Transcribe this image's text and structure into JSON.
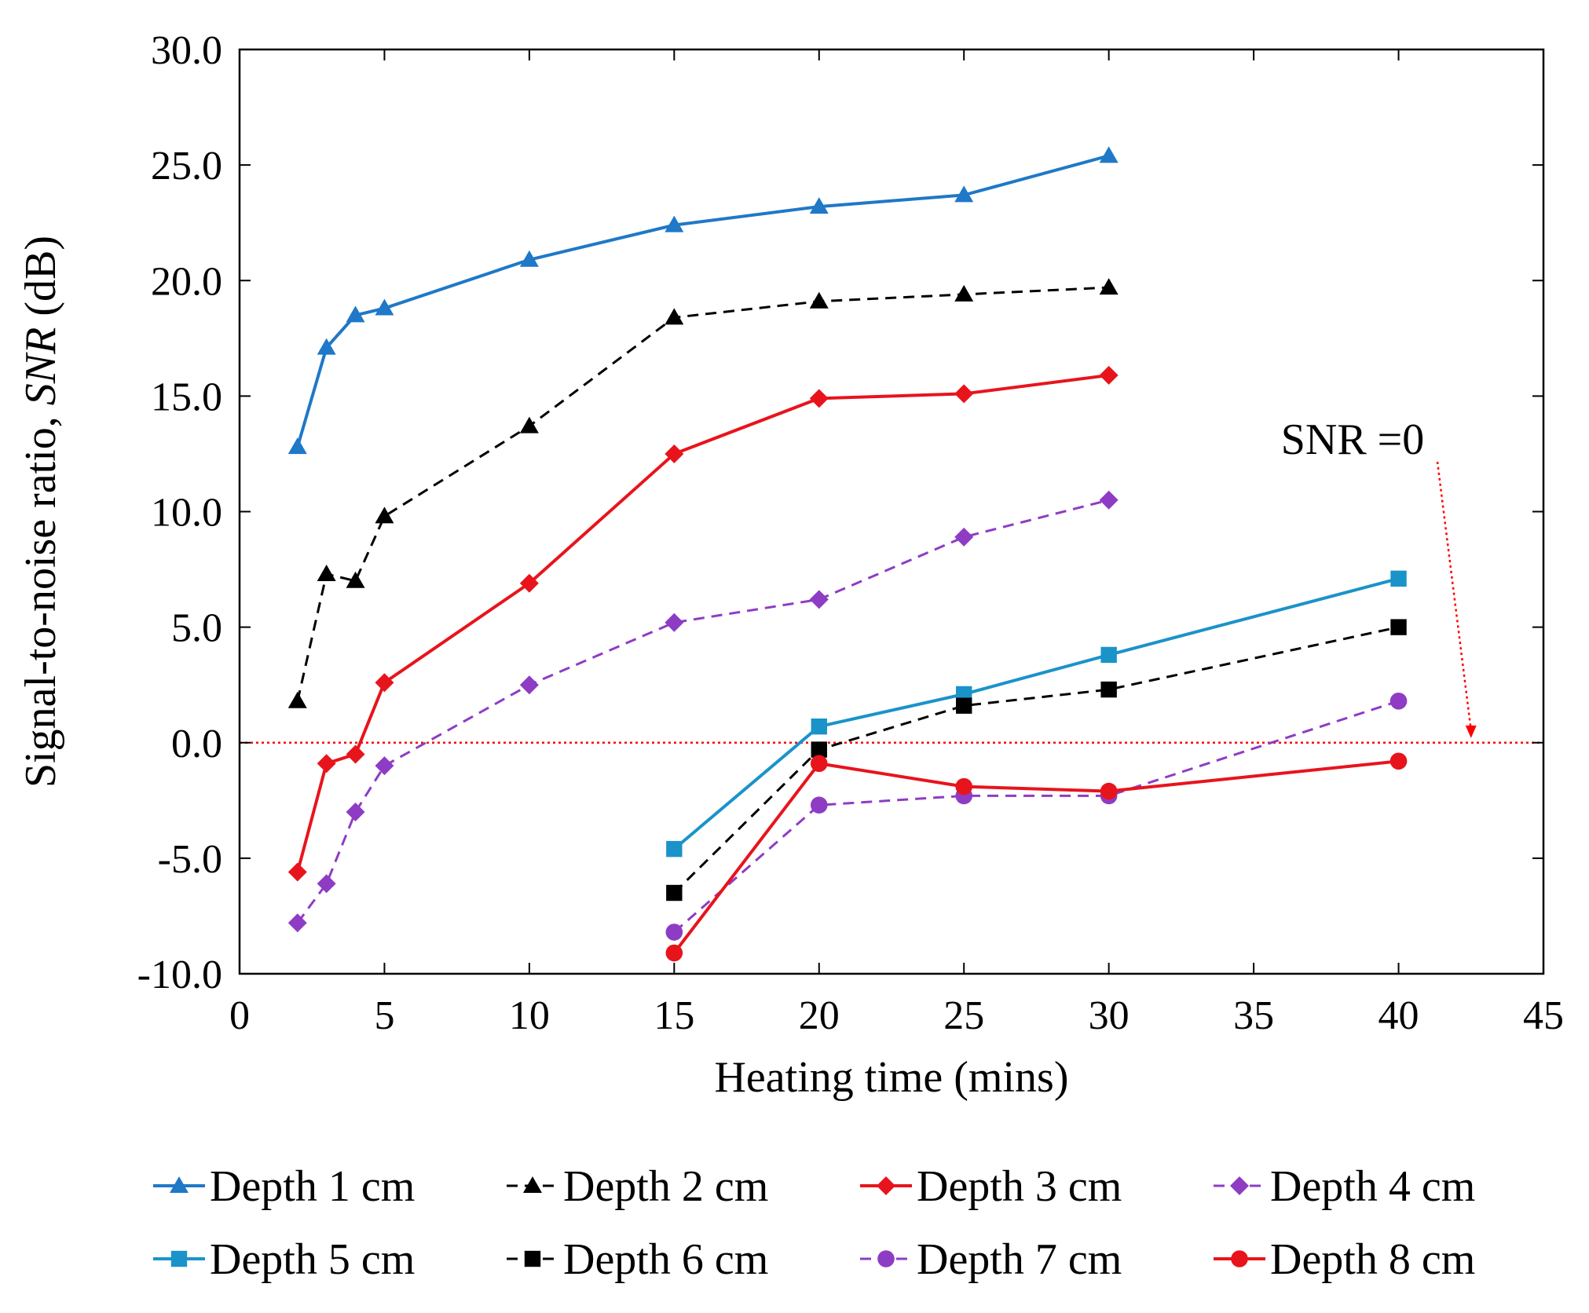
{
  "chart_data": {
    "type": "line",
    "title": "",
    "xlabel": "Heating time (mins)",
    "ylabel_prefix": "Signal-to-noise ratio, ",
    "ylabel_italic": "SNR",
    "ylabel_suffix": " (dB)",
    "xlim": [
      0,
      45
    ],
    "ylim": [
      -10,
      30
    ],
    "x_ticks": [
      0,
      5,
      10,
      15,
      20,
      25,
      30,
      35,
      40,
      45
    ],
    "y_ticks": [
      -10,
      -5,
      0,
      5,
      10,
      15,
      20,
      25,
      30
    ],
    "x_tick_labels": [
      "0",
      "5",
      "10",
      "15",
      "20",
      "25",
      "30",
      "35",
      "40",
      "45"
    ],
    "y_tick_labels": [
      "-10.0",
      "-5.0",
      "0.0",
      "5.0",
      "10.0",
      "15.0",
      "20.0",
      "25.0",
      "30.0"
    ],
    "grid": false,
    "legend_position": "bottom",
    "reference_line": {
      "y": 0,
      "color": "#ff0000",
      "style": "dotted"
    },
    "annotation": {
      "text": "SNR =0",
      "arrow_to": [
        42.5,
        0.2
      ]
    },
    "series": [
      {
        "name": "Depth 1 cm",
        "color": "#1f78c8",
        "dashed": false,
        "marker": "triangle",
        "x": [
          2,
          3,
          4,
          5,
          10,
          15,
          20,
          25,
          30
        ],
        "y": [
          12.8,
          17.1,
          18.5,
          18.8,
          20.9,
          22.4,
          23.2,
          23.7,
          25.4
        ]
      },
      {
        "name": "Depth 2 cm",
        "color": "#000000",
        "dashed": true,
        "marker": "triangle",
        "x": [
          2,
          3,
          4,
          5,
          10,
          15,
          20,
          25,
          30
        ],
        "y": [
          1.8,
          7.3,
          7.0,
          9.8,
          13.7,
          18.4,
          19.1,
          19.4,
          19.7
        ]
      },
      {
        "name": "Depth 3 cm",
        "color": "#e8141c",
        "dashed": false,
        "marker": "diamond",
        "x": [
          2,
          3,
          4,
          5,
          10,
          15,
          20,
          25,
          30
        ],
        "y": [
          -5.6,
          -0.9,
          -0.5,
          2.6,
          6.9,
          12.5,
          14.9,
          15.1,
          15.9
        ]
      },
      {
        "name": "Depth 4 cm",
        "color": "#8e3cc4",
        "dashed": true,
        "marker": "diamond",
        "x": [
          2,
          3,
          4,
          5,
          10,
          15,
          20,
          25,
          30
        ],
        "y": [
          -7.8,
          -6.1,
          -3.0,
          -1.0,
          2.5,
          5.2,
          6.2,
          8.9,
          10.5
        ]
      },
      {
        "name": "Depth 5 cm",
        "color": "#1a93c9",
        "dashed": false,
        "marker": "square",
        "x": [
          15,
          20,
          25,
          30,
          40
        ],
        "y": [
          -4.6,
          0.7,
          2.1,
          3.8,
          7.1
        ]
      },
      {
        "name": "Depth 6 cm",
        "color": "#000000",
        "dashed": true,
        "marker": "square",
        "x": [
          15,
          20,
          25,
          30,
          40
        ],
        "y": [
          -6.5,
          -0.3,
          1.6,
          2.3,
          5.0
        ]
      },
      {
        "name": "Depth 7 cm",
        "color": "#8e3cc4",
        "dashed": true,
        "marker": "circle",
        "x": [
          15,
          20,
          25,
          30,
          40
        ],
        "y": [
          -8.2,
          -2.7,
          -2.3,
          -2.3,
          1.8
        ]
      },
      {
        "name": "Depth 8 cm",
        "color": "#e8141c",
        "dashed": false,
        "marker": "circle",
        "x": [
          15,
          20,
          25,
          30,
          40
        ],
        "y": [
          -9.1,
          -0.9,
          -1.9,
          -2.1,
          -0.8
        ]
      }
    ]
  }
}
